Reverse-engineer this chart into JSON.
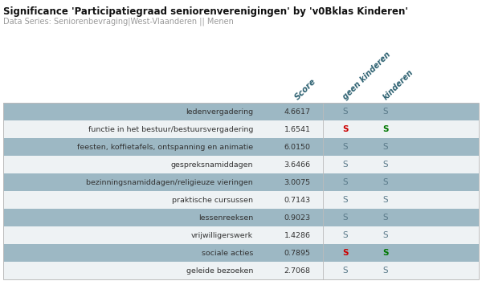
{
  "title": "Significance 'Participatiegraad seniorenverenigingen' by 'v0Bklas Kinderen'",
  "subtitle": "Data Series: Seniorenbevraging|West-Vlaanderen || Menen",
  "col_headers": [
    "Score",
    "geen kinderen",
    "kinderen"
  ],
  "rows": [
    {
      "label": "ledenvergadering",
      "score": "4.6617",
      "geen_k_color": "dark",
      "k_color": "dark",
      "bg": "shaded"
    },
    {
      "label": "functie in het bestuur/bestuursvergadering",
      "score": "1.6541",
      "geen_k_color": "red",
      "k_color": "green",
      "bg": "white"
    },
    {
      "label": "feesten, koffietafels, ontspanning en animatie",
      "score": "6.0150",
      "geen_k_color": "dark",
      "k_color": "dark",
      "bg": "shaded"
    },
    {
      "label": "gespreksnamiddagen",
      "score": "3.6466",
      "geen_k_color": "dark",
      "k_color": "dark",
      "bg": "white"
    },
    {
      "label": "bezinningsnamiddagen/religieuze vieringen",
      "score": "3.0075",
      "geen_k_color": "dark",
      "k_color": "dark",
      "bg": "shaded"
    },
    {
      "label": "praktische cursussen",
      "score": "0.7143",
      "geen_k_color": "dark",
      "k_color": "dark",
      "bg": "white"
    },
    {
      "label": "lessenreeksen",
      "score": "0.9023",
      "geen_k_color": "dark",
      "k_color": "dark",
      "bg": "shaded"
    },
    {
      "label": "vrijwilligerswerk",
      "score": "1.4286",
      "geen_k_color": "dark",
      "k_color": "dark",
      "bg": "white"
    },
    {
      "label": "sociale acties",
      "score": "0.7895",
      "geen_k_color": "red",
      "k_color": "green",
      "bg": "shaded"
    },
    {
      "label": "geleide bezoeken",
      "score": "2.7068",
      "geen_k_color": "dark",
      "k_color": "dark",
      "bg": "white"
    }
  ],
  "shaded_bg": "#9db8c4",
  "white_bg": "#eef2f4",
  "title_color": "#111111",
  "subtitle_color": "#999999",
  "label_color": "#333333",
  "score_color": "#333333",
  "s_dark_color": "#5a7a8a",
  "s_red_color": "#cc0000",
  "s_green_color": "#007700",
  "header_text_color": "#2c6070"
}
